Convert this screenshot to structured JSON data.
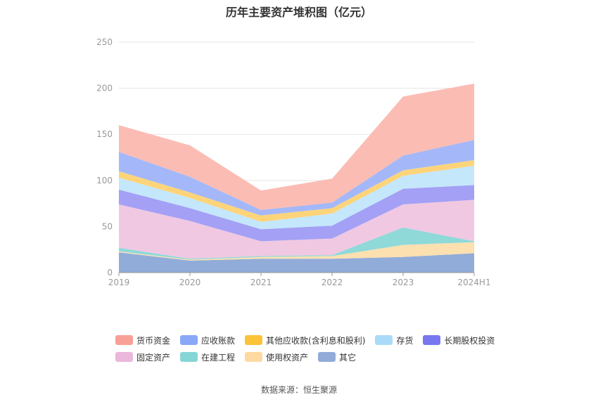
{
  "chart_data": {
    "type": "area",
    "stacked": true,
    "title": "历年主要资产堆积图（亿元）",
    "categories": [
      "2019",
      "2020",
      "2021",
      "2022",
      "2023",
      "2024H1"
    ],
    "ylim": [
      0,
      250
    ],
    "yticks": [
      0,
      50,
      100,
      150,
      200,
      250
    ],
    "grid": true,
    "legend_position": "bottom",
    "series": [
      {
        "name": "其它",
        "color": "#91acd9",
        "values": [
          22,
          13,
          15,
          15,
          17,
          21
        ]
      },
      {
        "name": "使用权资产",
        "color": "#fde0b0",
        "values": [
          1,
          1,
          2,
          3,
          13,
          12
        ]
      },
      {
        "name": "在建工程",
        "color": "#8fd9d9",
        "values": [
          4,
          1,
          1,
          1,
          19,
          1
        ]
      },
      {
        "name": "固定资产",
        "color": "#f0c8e2",
        "values": [
          47,
          41,
          16,
          18,
          25,
          45
        ]
      },
      {
        "name": "长期股权投资",
        "color": "#a3a0f5",
        "values": [
          16,
          14,
          13,
          14,
          17,
          16
        ]
      },
      {
        "name": "存货",
        "color": "#c4e7fb",
        "values": [
          13,
          11,
          8,
          13,
          14,
          21
        ]
      },
      {
        "name": "其他应收款(含利息和股利)",
        "color": "#fdd47a",
        "values": [
          7,
          6,
          7,
          6,
          6,
          6
        ]
      },
      {
        "name": "应收账款",
        "color": "#a4b8f9",
        "values": [
          21,
          17,
          6,
          6,
          16,
          22
        ]
      },
      {
        "name": "货币资金",
        "color": "#fbbcb4",
        "values": [
          29,
          34,
          21,
          26,
          64,
          61
        ]
      }
    ],
    "legend_swatch_colors": {
      "货币资金": "#f8a097",
      "应收账款": "#8aa8f8",
      "其他应收款(含利息和股利)": "#fbc33a",
      "存货": "#a9dbf8",
      "长期股权投资": "#7877f0",
      "固定资产": "#ebb7db",
      "在建工程": "#86d6d6",
      "使用权资产": "#fdd9a1",
      "其它": "#93abd9"
    }
  },
  "legend": {
    "row1": [
      "货币资金",
      "应收账款",
      "其他应收款(含利息和股利)",
      "存货",
      "长期股权投资"
    ],
    "row2": [
      "固定资产",
      "在建工程",
      "使用权资产",
      "其它"
    ]
  },
  "source": "数据来源：恒生聚源"
}
